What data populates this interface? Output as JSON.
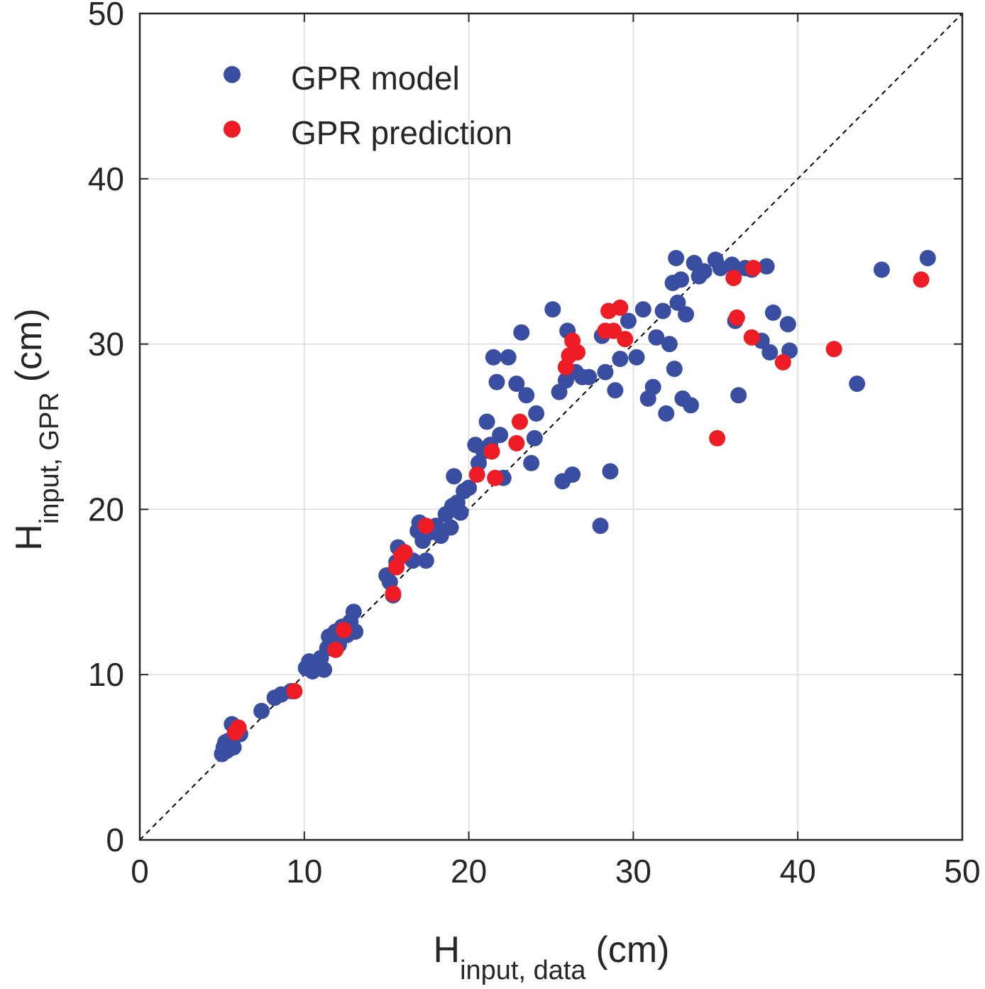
{
  "chart_data": {
    "type": "scatter",
    "xlabel": {
      "main": "H",
      "sub": "input, data",
      "unit": "(cm)"
    },
    "ylabel": {
      "main": "H",
      "sub": "input, GPR",
      "unit": "(cm)"
    },
    "xlim": [
      0,
      50
    ],
    "ylim": [
      0,
      50
    ],
    "xticks": [
      0,
      10,
      20,
      30,
      40,
      50
    ],
    "yticks": [
      0,
      10,
      20,
      30,
      40,
      50
    ],
    "grid": true,
    "legend_position": "top-left",
    "reference_line": {
      "style": "dashed",
      "color": "#000000",
      "from": [
        0,
        0
      ],
      "to": [
        50,
        50
      ]
    },
    "series": [
      {
        "name": "GPR model",
        "color": "#3a4ea1",
        "points": [
          [
            5.0,
            5.2
          ],
          [
            5.1,
            5.6
          ],
          [
            5.2,
            5.9
          ],
          [
            5.3,
            5.4
          ],
          [
            5.4,
            6.0
          ],
          [
            5.5,
            5.8
          ],
          [
            5.6,
            7.0
          ],
          [
            5.7,
            5.6
          ],
          [
            5.8,
            6.5
          ],
          [
            6.1,
            6.4
          ],
          [
            7.4,
            7.8
          ],
          [
            8.2,
            8.6
          ],
          [
            8.6,
            8.8
          ],
          [
            9.2,
            9.0
          ],
          [
            10.1,
            10.4
          ],
          [
            10.3,
            10.8
          ],
          [
            10.5,
            10.2
          ],
          [
            10.8,
            10.6
          ],
          [
            11.0,
            11.0
          ],
          [
            11.2,
            10.3
          ],
          [
            11.4,
            11.6
          ],
          [
            11.5,
            12.3
          ],
          [
            11.7,
            12.0
          ],
          [
            11.9,
            12.6
          ],
          [
            12.1,
            11.8
          ],
          [
            12.3,
            12.9
          ],
          [
            12.6,
            12.4
          ],
          [
            12.8,
            13.2
          ],
          [
            13.0,
            13.8
          ],
          [
            13.1,
            12.6
          ],
          [
            15.0,
            16.0
          ],
          [
            15.2,
            15.6
          ],
          [
            15.4,
            14.8
          ],
          [
            15.6,
            16.8
          ],
          [
            15.7,
            17.7
          ],
          [
            16.0,
            17.2
          ],
          [
            16.6,
            16.9
          ],
          [
            16.9,
            18.7
          ],
          [
            17.0,
            19.2
          ],
          [
            17.2,
            18.1
          ],
          [
            17.4,
            16.9
          ],
          [
            17.6,
            18.6
          ],
          [
            18.0,
            19.0
          ],
          [
            18.3,
            18.4
          ],
          [
            18.6,
            19.7
          ],
          [
            18.9,
            18.9
          ],
          [
            19.0,
            20.2
          ],
          [
            19.1,
            22.0
          ],
          [
            19.3,
            20.4
          ],
          [
            19.5,
            19.8
          ],
          [
            19.7,
            21.1
          ],
          [
            20.0,
            21.3
          ],
          [
            20.4,
            23.9
          ],
          [
            20.6,
            22.8
          ],
          [
            20.9,
            23.5
          ],
          [
            21.1,
            25.3
          ],
          [
            21.3,
            23.9
          ],
          [
            21.5,
            29.2
          ],
          [
            21.7,
            27.7
          ],
          [
            21.9,
            24.5
          ],
          [
            22.1,
            21.9
          ],
          [
            22.4,
            29.2
          ],
          [
            22.9,
            27.6
          ],
          [
            23.2,
            30.7
          ],
          [
            23.5,
            26.9
          ],
          [
            23.8,
            22.8
          ],
          [
            24.0,
            24.3
          ],
          [
            24.1,
            25.8
          ],
          [
            25.1,
            32.1
          ],
          [
            25.5,
            27.1
          ],
          [
            25.7,
            21.7
          ],
          [
            25.9,
            27.8
          ],
          [
            26.0,
            30.8
          ],
          [
            26.3,
            22.1
          ],
          [
            26.5,
            28.3
          ],
          [
            26.9,
            28.0
          ],
          [
            27.3,
            28.0
          ],
          [
            28.0,
            19.0
          ],
          [
            28.1,
            30.5
          ],
          [
            28.3,
            28.3
          ],
          [
            28.6,
            22.3
          ],
          [
            28.9,
            27.2
          ],
          [
            29.2,
            29.1
          ],
          [
            29.7,
            31.4
          ],
          [
            30.2,
            29.2
          ],
          [
            30.6,
            32.1
          ],
          [
            30.9,
            26.7
          ],
          [
            31.2,
            27.4
          ],
          [
            31.4,
            30.4
          ],
          [
            31.8,
            32.0
          ],
          [
            32.0,
            25.8
          ],
          [
            32.2,
            30.0
          ],
          [
            32.4,
            33.7
          ],
          [
            32.7,
            32.5
          ],
          [
            32.5,
            28.5
          ],
          [
            32.6,
            35.2
          ],
          [
            32.9,
            33.9
          ],
          [
            33.0,
            26.7
          ],
          [
            33.2,
            31.8
          ],
          [
            33.5,
            26.3
          ],
          [
            33.7,
            34.9
          ],
          [
            34.0,
            34.1
          ],
          [
            34.3,
            34.4
          ],
          [
            35.0,
            35.1
          ],
          [
            35.3,
            34.6
          ],
          [
            36.0,
            34.8
          ],
          [
            36.2,
            31.4
          ],
          [
            36.4,
            26.9
          ],
          [
            36.8,
            34.6
          ],
          [
            37.2,
            34.5
          ],
          [
            37.8,
            30.2
          ],
          [
            38.1,
            34.7
          ],
          [
            38.3,
            29.5
          ],
          [
            38.5,
            31.9
          ],
          [
            39.4,
            31.2
          ],
          [
            39.5,
            29.6
          ],
          [
            43.6,
            27.6
          ],
          [
            45.1,
            34.5
          ],
          [
            47.9,
            35.2
          ]
        ]
      },
      {
        "name": "GPR prediction",
        "color": "#ee1c25",
        "points": [
          [
            5.8,
            6.5
          ],
          [
            6.0,
            6.8
          ],
          [
            9.4,
            9.0
          ],
          [
            11.9,
            11.5
          ],
          [
            12.4,
            12.7
          ],
          [
            15.4,
            14.9
          ],
          [
            15.6,
            16.5
          ],
          [
            15.9,
            17.2
          ],
          [
            16.1,
            17.4
          ],
          [
            17.4,
            19.0
          ],
          [
            20.5,
            22.1
          ],
          [
            21.4,
            23.5
          ],
          [
            21.6,
            21.9
          ],
          [
            22.9,
            24.0
          ],
          [
            23.1,
            25.3
          ],
          [
            25.9,
            28.6
          ],
          [
            26.1,
            29.3
          ],
          [
            26.3,
            30.2
          ],
          [
            26.6,
            29.5
          ],
          [
            28.3,
            30.8
          ],
          [
            28.5,
            32.0
          ],
          [
            28.8,
            30.8
          ],
          [
            29.2,
            32.2
          ],
          [
            29.5,
            30.3
          ],
          [
            35.1,
            24.3
          ],
          [
            36.1,
            34.0
          ],
          [
            36.3,
            31.6
          ],
          [
            37.2,
            30.4
          ],
          [
            37.3,
            34.6
          ],
          [
            39.1,
            28.9
          ],
          [
            42.2,
            29.7
          ],
          [
            47.5,
            33.9
          ]
        ]
      }
    ]
  }
}
